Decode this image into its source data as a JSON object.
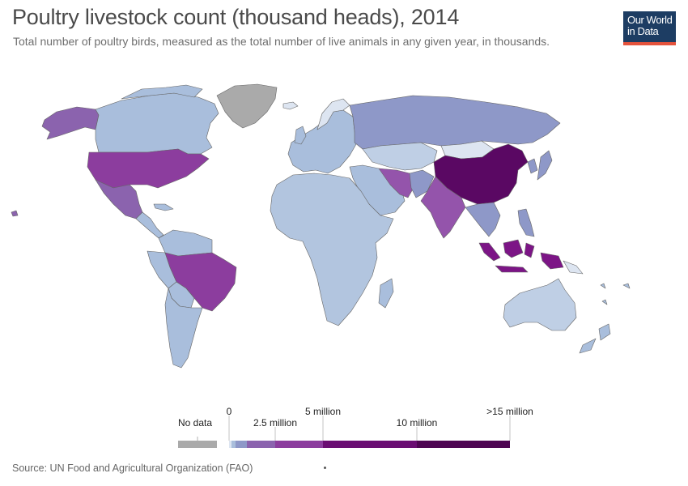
{
  "title": "Poultry livestock count (thousand heads), 2014",
  "subtitle": "Total number of poultry birds, measured as the total number of live animals in any given year, in thousands.",
  "logo": {
    "line1": "Our World",
    "line2": "in Data",
    "background": "#1d3d63",
    "accent": "#e5533c"
  },
  "legend": {
    "no_data_label": "No data",
    "no_data_color": "#aaaaaa",
    "tick_labels": [
      "0",
      "2.5 million",
      "5 million",
      "10 million",
      ">15 million"
    ],
    "bins": [
      {
        "upper_thousand_heads": 100000,
        "color": "#dde5f1"
      },
      {
        "upper_thousand_heads": 250000,
        "color": "#a9bedc"
      },
      {
        "upper_thousand_heads": 500000,
        "color": "#8e98c8"
      },
      {
        "upper_thousand_heads": 1000000,
        "color": "#8b63ae"
      },
      {
        "upper_thousand_heads": 2500000,
        "color": "#8c3d9e"
      },
      {
        "upper_thousand_heads": 5000000,
        "color": "#7c1586"
      },
      {
        "upper_thousand_heads": 10000000,
        "color": "#6a0d72"
      },
      {
        "upper_thousand_heads": 15000000,
        "color": "#4e0552"
      }
    ]
  },
  "map": {
    "year": "2014",
    "shading": [
      {
        "region": "China",
        "color": "#5a0863"
      },
      {
        "region": "United States",
        "color": "#8c3d9e"
      },
      {
        "region": "Brazil",
        "color": "#8c3d9e"
      },
      {
        "region": "Indonesia",
        "color": "#7c1586"
      },
      {
        "region": "India",
        "color": "#9454ab"
      },
      {
        "region": "Mexico",
        "color": "#8b63ae"
      },
      {
        "region": "Iran",
        "color": "#9454ab"
      },
      {
        "region": "Russia",
        "color": "#8e98c8"
      },
      {
        "region": "Greenland",
        "color": "#aaaaaa"
      },
      {
        "region": "Canada",
        "color": "#a9bedc"
      },
      {
        "region": "Australia",
        "color": "#bfcfe5"
      },
      {
        "region": "Africa",
        "color": "#b2c5df"
      }
    ]
  },
  "source": "Source: UN Food and Agricultural Organization (FAO)"
}
